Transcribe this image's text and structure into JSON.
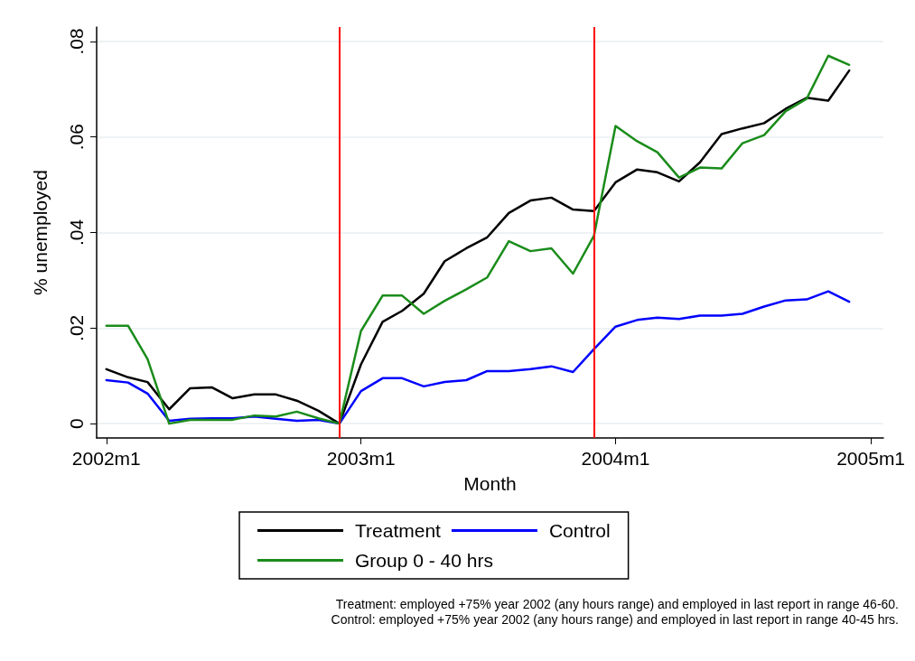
{
  "chart_data": {
    "type": "line",
    "xlabel": "Month",
    "ylabel": "% unemployed",
    "x": [
      "2002-01",
      "2002-02",
      "2002-03",
      "2002-04",
      "2002-05",
      "2002-06",
      "2002-07",
      "2002-08",
      "2002-09",
      "2002-10",
      "2002-11",
      "2002-12",
      "2003-01",
      "2003-02",
      "2003-03",
      "2003-04",
      "2003-05",
      "2003-06",
      "2003-07",
      "2003-08",
      "2003-09",
      "2003-10",
      "2003-11",
      "2003-12",
      "2004-01",
      "2004-02",
      "2004-03",
      "2004-04",
      "2004-05",
      "2004-06",
      "2004-07",
      "2004-08",
      "2004-09",
      "2004-10",
      "2004-11",
      "2004-12"
    ],
    "xlim": [
      "2001-12-18",
      "2005-01-19"
    ],
    "xticks": [
      {
        "value": "2002-01",
        "label": "2002m1"
      },
      {
        "value": "2003-01",
        "label": "2003m1"
      },
      {
        "value": "2004-01",
        "label": "2004m1"
      },
      {
        "value": "2005-01",
        "label": "2005m1"
      }
    ],
    "ylim": [
      -0.003,
      0.083
    ],
    "yticks": [
      0,
      {
        "value": 0.02,
        "label": ".02"
      },
      {
        "value": 0.04,
        "label": ".04"
      },
      {
        "value": 0.06,
        "label": ".06"
      },
      {
        "value": 0.08,
        "label": ".08"
      }
    ],
    "grid": "y",
    "legend": "bottom",
    "marker": "none",
    "line_style": "solid",
    "series": [
      {
        "name": "Treatment",
        "color": "#000000",
        "values": [
          0.0114,
          0.0097,
          0.0087,
          0.003,
          0.0074,
          0.0076,
          0.0053,
          0.0061,
          0.0061,
          0.0048,
          0.0027,
          0,
          0.0124,
          0.0213,
          0.0236,
          0.0272,
          0.034,
          0.0367,
          0.039,
          0.0441,
          0.0467,
          0.0473,
          0.0448,
          0.0445,
          0.0505,
          0.0532,
          0.0526,
          0.0507,
          0.0547,
          0.0606,
          0.0618,
          0.0629,
          0.0659,
          0.0682,
          0.0676,
          0.0739
        ]
      },
      {
        "name": "Control",
        "color": "#0000ff",
        "values": [
          0.0091,
          0.0086,
          0.0063,
          0.0006,
          0.001,
          0.0011,
          0.0011,
          0.0015,
          0.001,
          0.0006,
          0.0008,
          0,
          0.0068,
          0.0095,
          0.0095,
          0.0078,
          0.0087,
          0.0091,
          0.011,
          0.011,
          0.0114,
          0.012,
          0.0108,
          0.0156,
          0.0203,
          0.0217,
          0.0222,
          0.0219,
          0.0226,
          0.0226,
          0.023,
          0.0245,
          0.0258,
          0.026,
          0.0277,
          0.0255
        ]
      },
      {
        "name": "Group 0 - 40 hrs",
        "color": "#1a8c1a",
        "values": [
          0.0205,
          0.0205,
          0.0135,
          0,
          0.0008,
          0.0008,
          0.0008,
          0.0017,
          0.0015,
          0.0025,
          0.0011,
          0,
          0.0194,
          0.0268,
          0.0268,
          0.023,
          0.0257,
          0.0281,
          0.0306,
          0.0382,
          0.0361,
          0.0367,
          0.0314,
          0.0393,
          0.0623,
          0.0591,
          0.0568,
          0.0515,
          0.0536,
          0.0534,
          0.0587,
          0.0604,
          0.0654,
          0.068,
          0.077,
          0.0751
        ]
      }
    ],
    "ref_lines": [
      {
        "axis": "x",
        "value": "2002-12",
        "color": "#ff0000"
      },
      {
        "axis": "x",
        "value": "2003-12",
        "color": "#ff0000"
      }
    ],
    "annotations": [
      "Treatment: employed +75% year 2002 (any hours range) and employed in last report in range 46-60.",
      "Control: employed +75% year 2002 (any hours range) and employed in last report in range 40-45 hrs."
    ]
  }
}
